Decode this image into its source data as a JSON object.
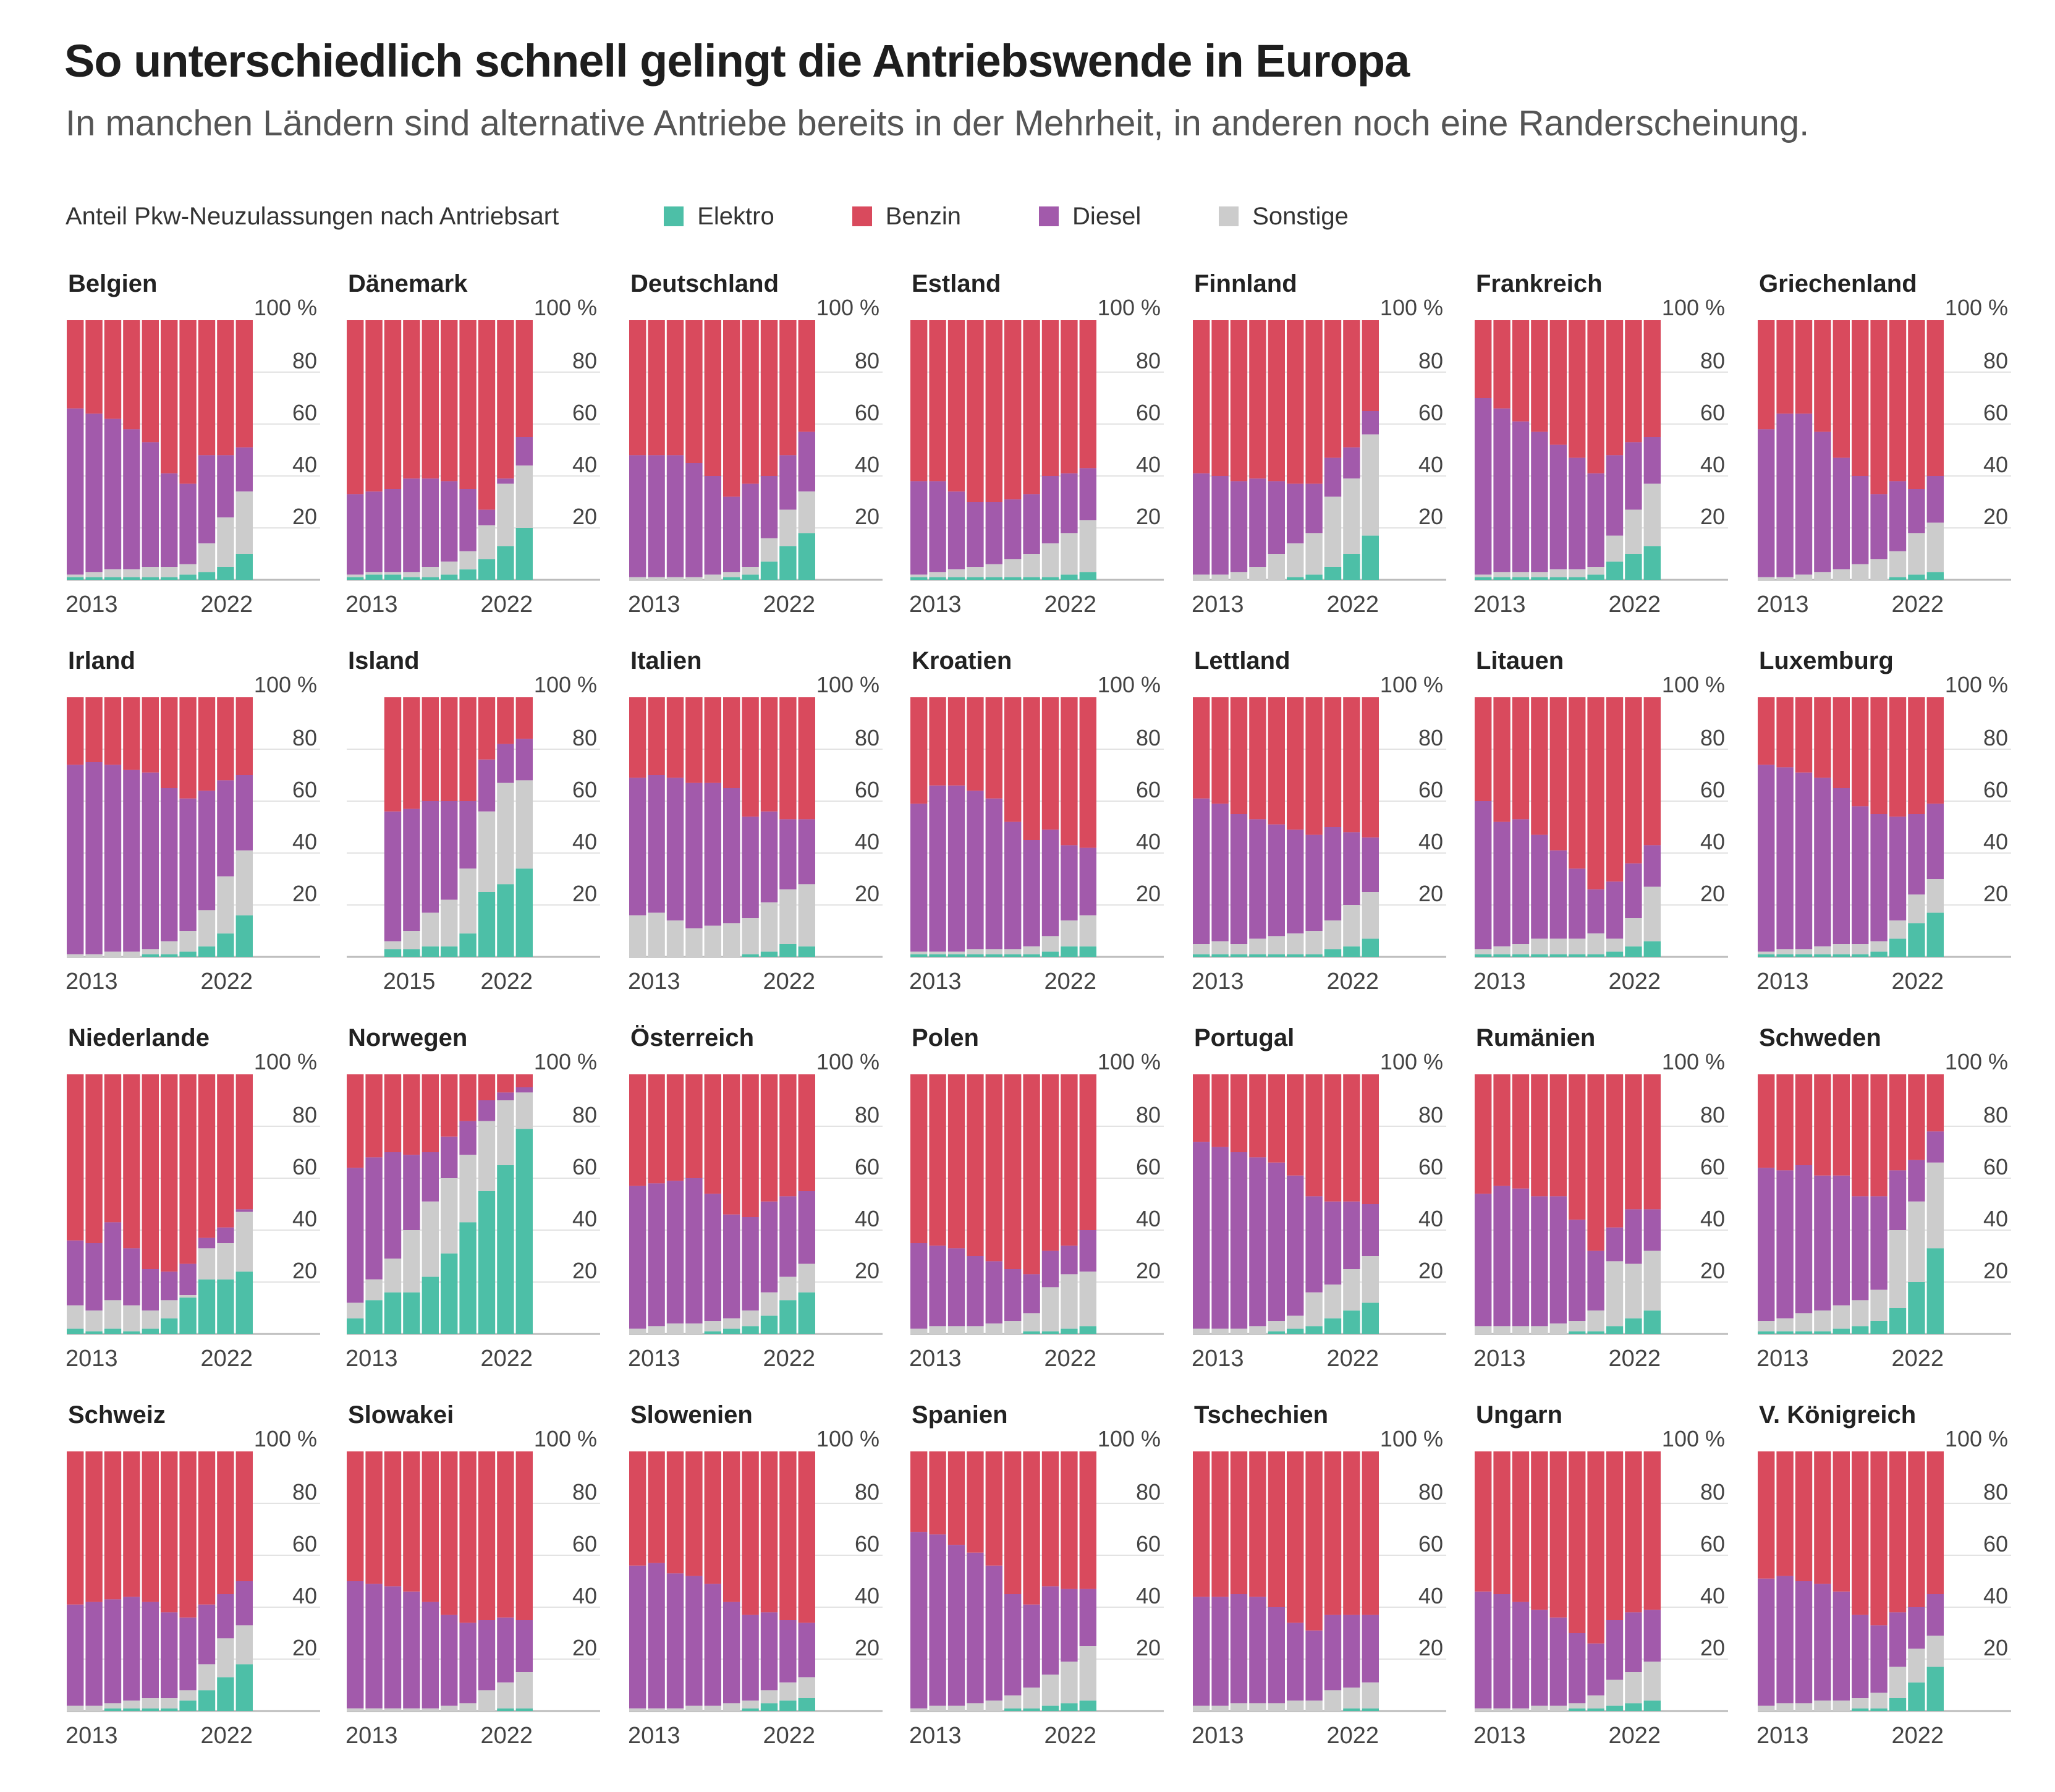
{
  "title": "So unterschiedlich schnell gelingt die Antriebswende in Europa",
  "subtitle": "In manchen Ländern sind alternative Antriebe bereits in der Mehrheit, in anderen noch eine Randerscheinung.",
  "legend": {
    "title": "Anteil Pkw-Neuzulassungen nach Antriebsart",
    "items": [
      {
        "label": "Elektro",
        "color": "#4dbfa7"
      },
      {
        "label": "Benzin",
        "color": "#d94a5d"
      },
      {
        "label": "Diesel",
        "color": "#a25aab"
      },
      {
        "label": "Sonstige",
        "color": "#cccccc"
      }
    ]
  },
  "chart_data": {
    "type": "bar",
    "stacked": true,
    "series_order": [
      "Elektro",
      "Sonstige",
      "Diesel",
      "Benzin"
    ],
    "colors": {
      "Elektro": "#4dbfa7",
      "Benzin": "#d94a5d",
      "Diesel": "#a25aab",
      "Sonstige": "#cccccc"
    },
    "years": [
      2013,
      2014,
      2015,
      2016,
      2017,
      2018,
      2019,
      2020,
      2021,
      2022
    ],
    "ylim": [
      0,
      100
    ],
    "yticks": [
      "100 %",
      "80",
      "60",
      "40",
      "20"
    ],
    "panels": [
      {
        "country": "Belgien",
        "xticks": [
          "2013",
          "2022"
        ],
        "elektro": [
          1,
          1,
          1,
          1,
          1,
          1,
          2,
          3,
          5,
          10
        ],
        "diesel_top": [
          66,
          64,
          62,
          58,
          53,
          41,
          37,
          48,
          48,
          51
        ],
        "sonstige_top": [
          2,
          3,
          4,
          4,
          5,
          5,
          6,
          14,
          24,
          34
        ]
      },
      {
        "country": "Dänemark",
        "xticks": [
          "2013",
          "2022"
        ],
        "elektro": [
          1,
          2,
          2,
          1,
          1,
          2,
          4,
          8,
          13,
          20
        ],
        "diesel_top": [
          33,
          34,
          35,
          39,
          39,
          38,
          35,
          27,
          39,
          55
        ],
        "sonstige_top": [
          2,
          3,
          3,
          3,
          5,
          7,
          11,
          21,
          37,
          44
        ]
      },
      {
        "country": "Deutschland",
        "xticks": [
          "2013",
          "2022"
        ],
        "elektro": [
          0,
          0,
          0,
          0,
          0,
          1,
          2,
          7,
          13,
          18
        ],
        "diesel_top": [
          48,
          48,
          48,
          45,
          40,
          32,
          37,
          40,
          48,
          57
        ],
        "sonstige_top": [
          1,
          1,
          1,
          1,
          2,
          3,
          5,
          16,
          27,
          34
        ]
      },
      {
        "country": "Estland",
        "xticks": [
          "2013",
          "2022"
        ],
        "elektro": [
          1,
          1,
          1,
          1,
          1,
          1,
          1,
          1,
          2,
          3
        ],
        "diesel_top": [
          38,
          38,
          34,
          30,
          30,
          31,
          33,
          40,
          41,
          43
        ],
        "sonstige_top": [
          2,
          3,
          4,
          5,
          6,
          8,
          10,
          14,
          18,
          23
        ]
      },
      {
        "country": "Finnland",
        "xticks": [
          "2013",
          "2022"
        ],
        "elektro": [
          0,
          0,
          0,
          0,
          0,
          1,
          2,
          5,
          10,
          17
        ],
        "diesel_top": [
          41,
          40,
          38,
          39,
          38,
          37,
          37,
          47,
          51,
          65
        ],
        "sonstige_top": [
          2,
          2,
          3,
          5,
          10,
          14,
          18,
          32,
          39,
          56
        ]
      },
      {
        "country": "Frankreich",
        "xticks": [
          "2013",
          "2022"
        ],
        "elektro": [
          1,
          1,
          1,
          1,
          1,
          1,
          2,
          7,
          10,
          13
        ],
        "diesel_top": [
          70,
          66,
          61,
          57,
          52,
          47,
          41,
          48,
          53,
          55
        ],
        "sonstige_top": [
          2,
          3,
          3,
          3,
          4,
          4,
          5,
          17,
          27,
          37
        ]
      },
      {
        "country": "Griechenland",
        "xticks": [
          "2013",
          "2022"
        ],
        "elektro": [
          0,
          0,
          0,
          0,
          0,
          0,
          0,
          1,
          2,
          3
        ],
        "diesel_top": [
          58,
          64,
          64,
          57,
          47,
          40,
          33,
          38,
          35,
          40
        ],
        "sonstige_top": [
          1,
          1,
          2,
          3,
          4,
          6,
          8,
          11,
          18,
          22
        ]
      },
      {
        "country": "Irland",
        "xticks": [
          "2013",
          "2022"
        ],
        "elektro": [
          0,
          0,
          0,
          0,
          1,
          1,
          2,
          4,
          9,
          16
        ],
        "diesel_top": [
          74,
          75,
          74,
          72,
          71,
          65,
          61,
          64,
          68,
          70
        ],
        "sonstige_top": [
          1,
          1,
          2,
          2,
          3,
          6,
          10,
          18,
          31,
          41
        ]
      },
      {
        "country": "Island",
        "xticks": [
          "2015",
          "2022"
        ],
        "years": [
          2015,
          2016,
          2017,
          2018,
          2019,
          2020,
          2021,
          2022
        ],
        "elektro": [
          3,
          3,
          4,
          4,
          9,
          25,
          28,
          34
        ],
        "diesel_top": [
          56,
          57,
          60,
          60,
          60,
          76,
          82,
          84
        ],
        "sonstige_top": [
          6,
          10,
          17,
          22,
          34,
          56,
          67,
          68
        ]
      },
      {
        "country": "Italien",
        "xticks": [
          "2013",
          "2022"
        ],
        "elektro": [
          0,
          0,
          0,
          0,
          0,
          0,
          1,
          2,
          5,
          4
        ],
        "diesel_top": [
          69,
          70,
          69,
          67,
          67,
          65,
          54,
          56,
          53,
          53
        ],
        "sonstige_top": [
          16,
          17,
          14,
          11,
          12,
          13,
          15,
          21,
          26,
          28
        ]
      },
      {
        "country": "Kroatien",
        "xticks": [
          "2013",
          "2022"
        ],
        "elektro": [
          1,
          1,
          1,
          1,
          1,
          1,
          1,
          2,
          4,
          4
        ],
        "diesel_top": [
          59,
          66,
          66,
          64,
          61,
          52,
          45,
          49,
          43,
          42
        ],
        "sonstige_top": [
          2,
          2,
          2,
          3,
          3,
          3,
          4,
          8,
          14,
          16
        ]
      },
      {
        "country": "Lettland",
        "xticks": [
          "2013",
          "2022"
        ],
        "elektro": [
          1,
          1,
          1,
          1,
          1,
          1,
          1,
          3,
          4,
          7
        ],
        "diesel_top": [
          61,
          59,
          55,
          53,
          51,
          49,
          47,
          50,
          48,
          46
        ],
        "sonstige_top": [
          5,
          6,
          5,
          7,
          8,
          9,
          10,
          14,
          20,
          25
        ]
      },
      {
        "country": "Litauen",
        "xticks": [
          "2013",
          "2022"
        ],
        "elektro": [
          1,
          1,
          1,
          1,
          1,
          1,
          1,
          2,
          4,
          6
        ],
        "diesel_top": [
          60,
          52,
          53,
          47,
          41,
          34,
          26,
          29,
          36,
          43
        ],
        "sonstige_top": [
          3,
          4,
          5,
          7,
          7,
          7,
          9,
          7,
          15,
          27
        ]
      },
      {
        "country": "Luxemburg",
        "xticks": [
          "2013",
          "2022"
        ],
        "elektro": [
          1,
          1,
          1,
          1,
          1,
          1,
          2,
          7,
          13,
          17
        ],
        "diesel_top": [
          74,
          73,
          71,
          69,
          65,
          58,
          55,
          54,
          55,
          59
        ],
        "sonstige_top": [
          2,
          3,
          3,
          4,
          5,
          5,
          6,
          14,
          24,
          30
        ]
      },
      {
        "country": "Niederlande",
        "xticks": [
          "2013",
          "2022"
        ],
        "elektro": [
          2,
          1,
          2,
          1,
          2,
          6,
          14,
          21,
          21,
          24
        ],
        "diesel_top": [
          36,
          35,
          43,
          33,
          25,
          24,
          27,
          37,
          41,
          48
        ],
        "sonstige_top": [
          11,
          9,
          13,
          11,
          9,
          13,
          15,
          33,
          35,
          47
        ]
      },
      {
        "country": "Norwegen",
        "xticks": [
          "2013",
          "2022"
        ],
        "elektro": [
          6,
          13,
          16,
          16,
          22,
          31,
          43,
          55,
          65,
          79
        ],
        "diesel_top": [
          64,
          68,
          70,
          69,
          70,
          76,
          82,
          90,
          93,
          95
        ],
        "sonstige_top": [
          12,
          21,
          29,
          40,
          51,
          60,
          69,
          82,
          90,
          93
        ]
      },
      {
        "country": "Österreich",
        "xticks": [
          "2013",
          "2022"
        ],
        "elektro": [
          0,
          0,
          0,
          0,
          1,
          2,
          3,
          7,
          13,
          16
        ],
        "diesel_top": [
          57,
          58,
          59,
          60,
          54,
          46,
          45,
          51,
          53,
          55
        ],
        "sonstige_top": [
          2,
          3,
          4,
          4,
          5,
          6,
          9,
          16,
          22,
          27
        ]
      },
      {
        "country": "Polen",
        "xticks": [
          "2013",
          "2022"
        ],
        "elektro": [
          0,
          0,
          0,
          0,
          0,
          0,
          1,
          1,
          2,
          3
        ],
        "diesel_top": [
          35,
          34,
          33,
          30,
          28,
          25,
          23,
          32,
          34,
          40
        ],
        "sonstige_top": [
          2,
          3,
          3,
          3,
          4,
          5,
          8,
          18,
          23,
          24
        ]
      },
      {
        "country": "Portugal",
        "xticks": [
          "2013",
          "2022"
        ],
        "elektro": [
          0,
          0,
          0,
          0,
          1,
          2,
          3,
          6,
          9,
          12
        ],
        "diesel_top": [
          74,
          72,
          70,
          68,
          66,
          61,
          53,
          51,
          51,
          50
        ],
        "sonstige_top": [
          2,
          2,
          2,
          3,
          5,
          7,
          16,
          19,
          25,
          30
        ]
      },
      {
        "country": "Rumänien",
        "xticks": [
          "2013",
          "2022"
        ],
        "elektro": [
          0,
          0,
          0,
          0,
          0,
          1,
          1,
          3,
          6,
          9
        ],
        "diesel_top": [
          54,
          57,
          56,
          53,
          53,
          44,
          32,
          41,
          48,
          48
        ],
        "sonstige_top": [
          3,
          3,
          3,
          3,
          4,
          5,
          9,
          28,
          27,
          32
        ]
      },
      {
        "country": "Schweden",
        "xticks": [
          "2013",
          "2022"
        ],
        "elektro": [
          1,
          1,
          1,
          1,
          2,
          3,
          5,
          10,
          20,
          33
        ],
        "diesel_top": [
          64,
          63,
          65,
          61,
          61,
          53,
          53,
          63,
          67,
          78
        ],
        "sonstige_top": [
          5,
          6,
          8,
          9,
          11,
          13,
          17,
          40,
          51,
          66
        ]
      },
      {
        "country": "Schweiz",
        "xticks": [
          "2013",
          "2022"
        ],
        "elektro": [
          0,
          0,
          1,
          1,
          1,
          1,
          4,
          8,
          13,
          18
        ],
        "diesel_top": [
          41,
          42,
          43,
          44,
          42,
          38,
          36,
          41,
          45,
          50
        ],
        "sonstige_top": [
          2,
          2,
          3,
          4,
          5,
          5,
          8,
          18,
          28,
          33
        ]
      },
      {
        "country": "Slowakei",
        "xticks": [
          "2013",
          "2022"
        ],
        "elektro": [
          0,
          0,
          0,
          0,
          0,
          0,
          0,
          0,
          1,
          1
        ],
        "diesel_top": [
          50,
          49,
          48,
          46,
          42,
          37,
          34,
          35,
          36,
          35
        ],
        "sonstige_top": [
          1,
          1,
          1,
          1,
          1,
          2,
          3,
          8,
          11,
          15
        ]
      },
      {
        "country": "Slowenien",
        "xticks": [
          "2013",
          "2022"
        ],
        "elektro": [
          0,
          0,
          0,
          0,
          0,
          0,
          1,
          3,
          4,
          5
        ],
        "diesel_top": [
          56,
          57,
          53,
          52,
          49,
          42,
          37,
          38,
          35,
          34
        ],
        "sonstige_top": [
          1,
          1,
          1,
          2,
          2,
          3,
          4,
          8,
          11,
          13
        ]
      },
      {
        "country": "Spanien",
        "xticks": [
          "2013",
          "2022"
        ],
        "elektro": [
          0,
          0,
          0,
          0,
          0,
          1,
          1,
          2,
          3,
          4
        ],
        "diesel_top": [
          69,
          68,
          64,
          61,
          56,
          45,
          41,
          48,
          47,
          47
        ],
        "sonstige_top": [
          1,
          2,
          2,
          3,
          4,
          6,
          9,
          14,
          19,
          25
        ]
      },
      {
        "country": "Tschechien",
        "xticks": [
          "2013",
          "2022"
        ],
        "elektro": [
          0,
          0,
          0,
          0,
          0,
          0,
          0,
          0,
          1,
          1
        ],
        "diesel_top": [
          44,
          44,
          45,
          44,
          40,
          34,
          31,
          37,
          37,
          37
        ],
        "sonstige_top": [
          2,
          2,
          3,
          3,
          3,
          4,
          4,
          8,
          9,
          11
        ]
      },
      {
        "country": "Ungarn",
        "xticks": [
          "2013",
          "2022"
        ],
        "elektro": [
          0,
          0,
          0,
          0,
          0,
          1,
          1,
          2,
          3,
          4
        ],
        "diesel_top": [
          46,
          45,
          42,
          39,
          36,
          30,
          26,
          35,
          38,
          39
        ],
        "sonstige_top": [
          1,
          1,
          1,
          2,
          2,
          3,
          6,
          12,
          15,
          19
        ]
      },
      {
        "country": "V. Königreich",
        "xticks": [
          "2013",
          "2022"
        ],
        "elektro": [
          0,
          0,
          0,
          0,
          0,
          1,
          1,
          5,
          11,
          17
        ],
        "diesel_top": [
          51,
          52,
          50,
          49,
          46,
          37,
          33,
          38,
          40,
          45
        ],
        "sonstige_top": [
          2,
          3,
          3,
          4,
          4,
          5,
          7,
          17,
          24,
          29
        ]
      }
    ]
  }
}
